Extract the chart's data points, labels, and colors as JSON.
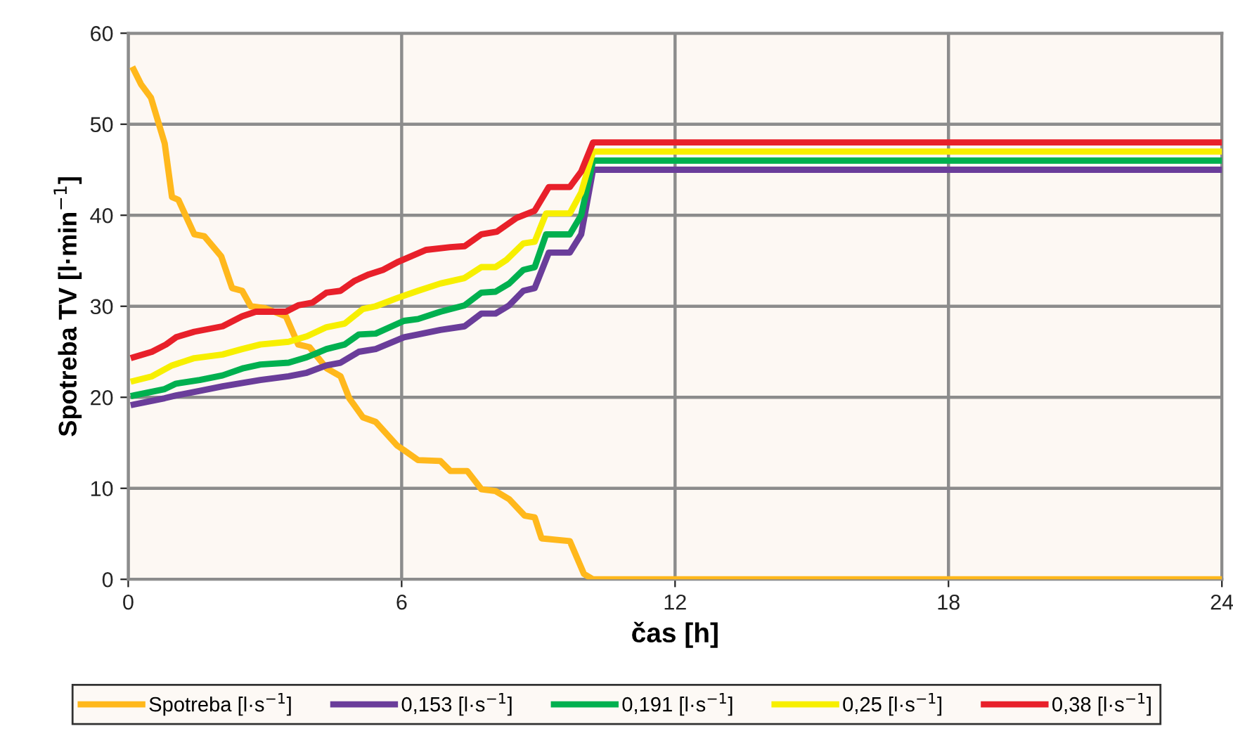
{
  "chart_data": {
    "type": "line",
    "xlabel": "čas [h]",
    "ylabel": "Spotreba TV [l·min$^{−1}$]",
    "xlim": [
      0,
      24
    ],
    "ylim": [
      0,
      60
    ],
    "xticks": [
      0,
      6,
      12,
      18,
      24
    ],
    "yticks": [
      0,
      10,
      20,
      30,
      40,
      50,
      60
    ],
    "grid": true,
    "legend": "bottom",
    "line_style": "solid",
    "marker": "none",
    "series": [
      {
        "name": "Spotreba [l·s$^{−1}$]",
        "color": "#ffb81c",
        "x": [
          0.12,
          0.28,
          0.5,
          0.8,
          0.96,
          1.1,
          1.45,
          1.67,
          2.04,
          2.28,
          2.5,
          2.69,
          3.0,
          3.46,
          3.73,
          3.98,
          4.35,
          4.66,
          4.85,
          5.15,
          5.43,
          5.9,
          6.05,
          6.36,
          6.85,
          7.07,
          7.44,
          7.75,
          8.06,
          8.36,
          8.7,
          8.92,
          9.07,
          9.69,
          10.0,
          10.2,
          24
        ],
        "values": [
          56.0,
          54.4,
          52.9,
          47.9,
          42.0,
          41.7,
          37.9,
          37.7,
          35.5,
          32.0,
          31.7,
          30.0,
          29.8,
          28.9,
          25.8,
          25.5,
          23.2,
          22.3,
          19.9,
          17.8,
          17.3,
          14.7,
          14.2,
          13.1,
          13.0,
          11.9,
          11.9,
          9.9,
          9.7,
          8.8,
          7.0,
          6.8,
          4.5,
          4.2,
          0.6,
          0,
          0
        ]
      },
      {
        "name": "0,153 [l·s$^{−1}$]",
        "color": "#6a3d9a",
        "x": [
          0.12,
          0.8,
          1.05,
          1.57,
          2.07,
          2.53,
          2.9,
          3.52,
          3.92,
          4.35,
          4.66,
          5.06,
          5.43,
          6.05,
          6.36,
          6.85,
          7.38,
          7.75,
          8.06,
          8.36,
          8.67,
          8.92,
          9.23,
          9.69,
          9.94,
          10.2,
          24
        ],
        "values": [
          19.2,
          19.9,
          20.2,
          20.7,
          21.2,
          21.6,
          21.9,
          22.3,
          22.7,
          23.5,
          23.8,
          25.0,
          25.3,
          26.6,
          26.9,
          27.4,
          27.8,
          29.2,
          29.2,
          30.1,
          31.7,
          32.0,
          35.9,
          35.9,
          37.9,
          45,
          45
        ]
      },
      {
        "name": "0,191 [l·s$^{−1}$]",
        "color": "#00b04f",
        "x": [
          0.12,
          0.8,
          1.05,
          1.57,
          2.07,
          2.53,
          2.9,
          3.52,
          3.92,
          4.35,
          4.75,
          5.06,
          5.43,
          6.05,
          6.36,
          6.85,
          7.38,
          7.75,
          8.06,
          8.36,
          8.67,
          8.92,
          9.17,
          9.69,
          9.94,
          10.2,
          24
        ],
        "values": [
          20.2,
          20.9,
          21.5,
          21.9,
          22.4,
          23.2,
          23.6,
          23.8,
          24.4,
          25.3,
          25.8,
          26.9,
          27.0,
          28.4,
          28.6,
          29.4,
          30.1,
          31.5,
          31.6,
          32.5,
          34.0,
          34.3,
          37.9,
          37.9,
          40.0,
          46,
          46
        ]
      },
      {
        "name": "0,25 [l·s$^{−1}$]",
        "color": "#f7ef00",
        "x": [
          0.12,
          0.52,
          0.96,
          1.45,
          2.07,
          2.5,
          2.9,
          3.52,
          3.92,
          4.35,
          4.75,
          5.15,
          5.43,
          5.9,
          6.36,
          6.85,
          7.38,
          7.75,
          8.06,
          8.3,
          8.67,
          8.92,
          9.17,
          9.69,
          9.94,
          10.2,
          24
        ],
        "values": [
          21.8,
          22.3,
          23.5,
          24.3,
          24.7,
          25.3,
          25.8,
          26.1,
          26.7,
          27.7,
          28.1,
          29.7,
          30.0,
          30.9,
          31.7,
          32.5,
          33.1,
          34.3,
          34.3,
          35.1,
          36.9,
          37.1,
          40.2,
          40.2,
          42.5,
          47,
          47
        ]
      },
      {
        "name": "0,38 [l·s$^{−1}$]",
        "color": "#e8202a",
        "x": [
          0.12,
          0.52,
          0.83,
          1.05,
          1.45,
          2.07,
          2.5,
          2.8,
          3.46,
          3.73,
          4.04,
          4.35,
          4.66,
          4.97,
          5.28,
          5.59,
          5.93,
          6.54,
          7.07,
          7.38,
          7.75,
          8.09,
          8.52,
          8.92,
          9.23,
          9.69,
          9.94,
          10.2,
          24
        ],
        "values": [
          24.4,
          25.0,
          25.8,
          26.6,
          27.2,
          27.8,
          28.9,
          29.4,
          29.4,
          30.1,
          30.4,
          31.5,
          31.7,
          32.8,
          33.5,
          34.0,
          34.9,
          36.2,
          36.5,
          36.6,
          37.9,
          38.2,
          39.7,
          40.5,
          43.1,
          43.1,
          44.8,
          48,
          48
        ]
      }
    ]
  }
}
